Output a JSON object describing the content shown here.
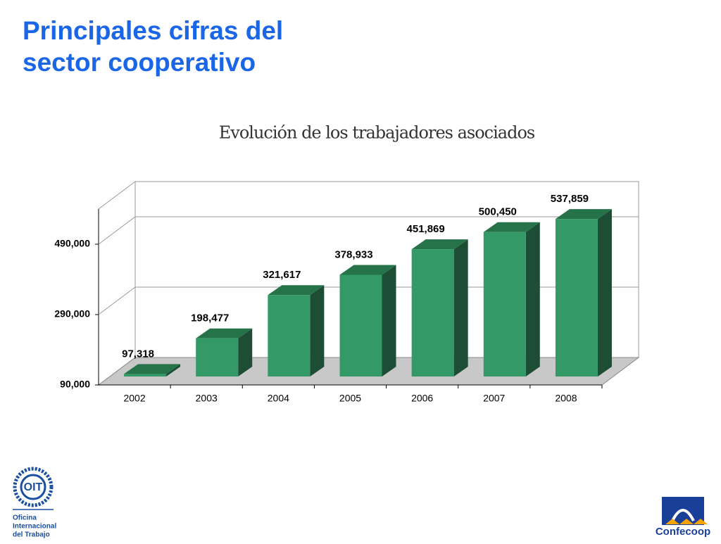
{
  "header": {
    "title_lines": [
      "Principales cifras del",
      "sector cooperativo"
    ]
  },
  "chart_data": {
    "type": "bar3d",
    "title": "Evolución de los trabajadores asociados",
    "categories": [
      "2002",
      "2003",
      "2004",
      "2005",
      "2006",
      "2007",
      "2008"
    ],
    "values": [
      97318,
      198477,
      321617,
      378933,
      451869,
      500450,
      537859
    ],
    "value_labels": [
      "97,318",
      "198,477",
      "321,617",
      "378,933",
      "451,869",
      "500,450",
      "537,859"
    ],
    "color": "#339966",
    "ylim": [
      90000,
      590000
    ],
    "yticks": [
      {
        "value": 90000,
        "label": "90,000"
      },
      {
        "value": 290000,
        "label": "290,000"
      },
      {
        "value": 490000,
        "label": "490,000"
      }
    ],
    "grid": true
  },
  "logos": {
    "left_lines": [
      "Oficina",
      "Internacional",
      "del Trabajo"
    ],
    "right": "Confecoop"
  }
}
